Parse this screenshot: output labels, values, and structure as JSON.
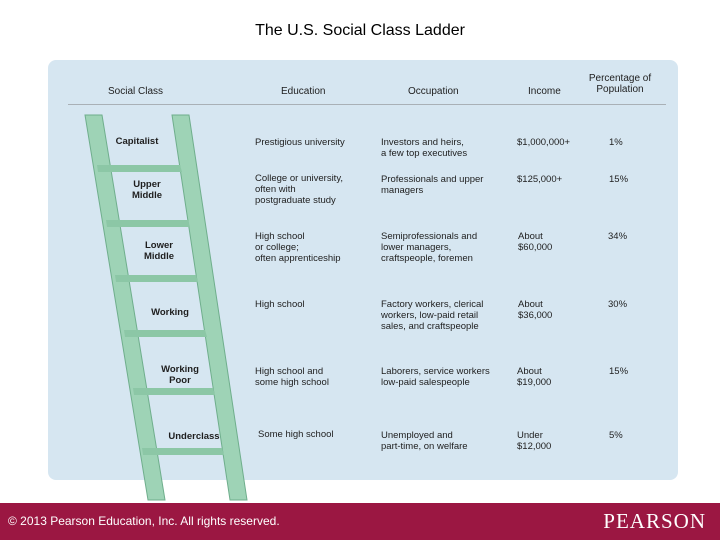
{
  "title": "The U.S. Social Class Ladder",
  "colors": {
    "panel": "#d6e6f1",
    "ladder": "#9ed3b6",
    "footer": "#9b1742"
  },
  "headers": {
    "social_class": "Social Class",
    "education": "Education",
    "occupation": "Occupation",
    "income": "Income",
    "percentage": "Percentage of\nPopulation"
  },
  "rows": [
    {
      "class": "Capitalist",
      "education": "Prestigious university",
      "occupation": "Investors and heirs,\na few top executives",
      "income": "$1,000,000+",
      "percentage": "1%"
    },
    {
      "class": "Upper\nMiddle",
      "education": "College or university,\noften with\npostgraduate study",
      "occupation": "Professionals and upper\nmanagers",
      "income": "$125,000+",
      "percentage": "15%"
    },
    {
      "class": "Lower\nMiddle",
      "education": "High school\nor college;\noften apprenticeship",
      "occupation": "Semiprofessionals and\nlower managers,\ncraftspeople, foremen",
      "income": "About\n$60,000",
      "percentage": "34%"
    },
    {
      "class": "Working",
      "education": "High school",
      "occupation": "Factory workers, clerical\nworkers, low-paid retail\nsales, and craftspeople",
      "income": "About\n$36,000",
      "percentage": "30%"
    },
    {
      "class": "Working\nPoor",
      "education": "High school and\nsome high school",
      "occupation": "Laborers, service workers\nlow-paid salespeople",
      "income": "About\n$19,000",
      "percentage": "15%"
    },
    {
      "class": "Underclass",
      "education": "Some high school",
      "occupation": "Unemployed and\npart-time, on welfare",
      "income": "Under\n$12,000",
      "percentage": "5%"
    }
  ],
  "footer": {
    "copyright": "© 2013  Pearson Education, Inc. All rights reserved.",
    "logo": "PEARSON"
  }
}
